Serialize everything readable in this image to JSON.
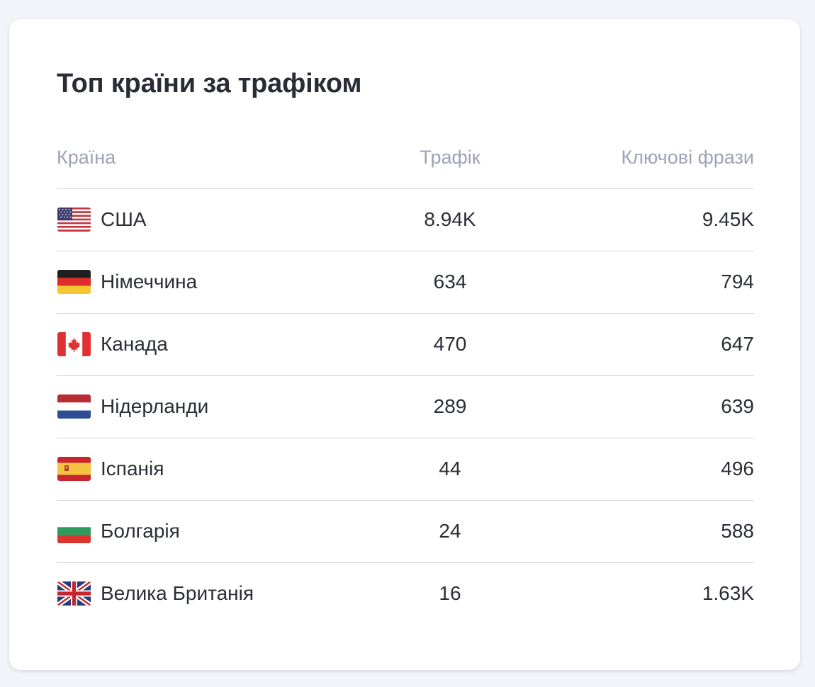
{
  "card": {
    "title": "Топ країни за трафіком"
  },
  "table": {
    "headers": {
      "country": "Країна",
      "traffic": "Трафік",
      "keywords": "Ключові фрази"
    },
    "rows": [
      {
        "flag": "us-flag-icon",
        "country": "США",
        "traffic": "8.94K",
        "keywords": "9.45K"
      },
      {
        "flag": "de-flag-icon",
        "country": "Німеччина",
        "traffic": "634",
        "keywords": "794"
      },
      {
        "flag": "ca-flag-icon",
        "country": "Канада",
        "traffic": "470",
        "keywords": "647"
      },
      {
        "flag": "nl-flag-icon",
        "country": "Нідерланди",
        "traffic": "289",
        "keywords": "639"
      },
      {
        "flag": "es-flag-icon",
        "country": "Іспанія",
        "traffic": "44",
        "keywords": "496"
      },
      {
        "flag": "bg-flag-icon",
        "country": "Болгарія",
        "traffic": "24",
        "keywords": "588"
      },
      {
        "flag": "gb-flag-icon",
        "country": "Велика Британія",
        "traffic": "16",
        "keywords": "1.63K"
      }
    ]
  }
}
